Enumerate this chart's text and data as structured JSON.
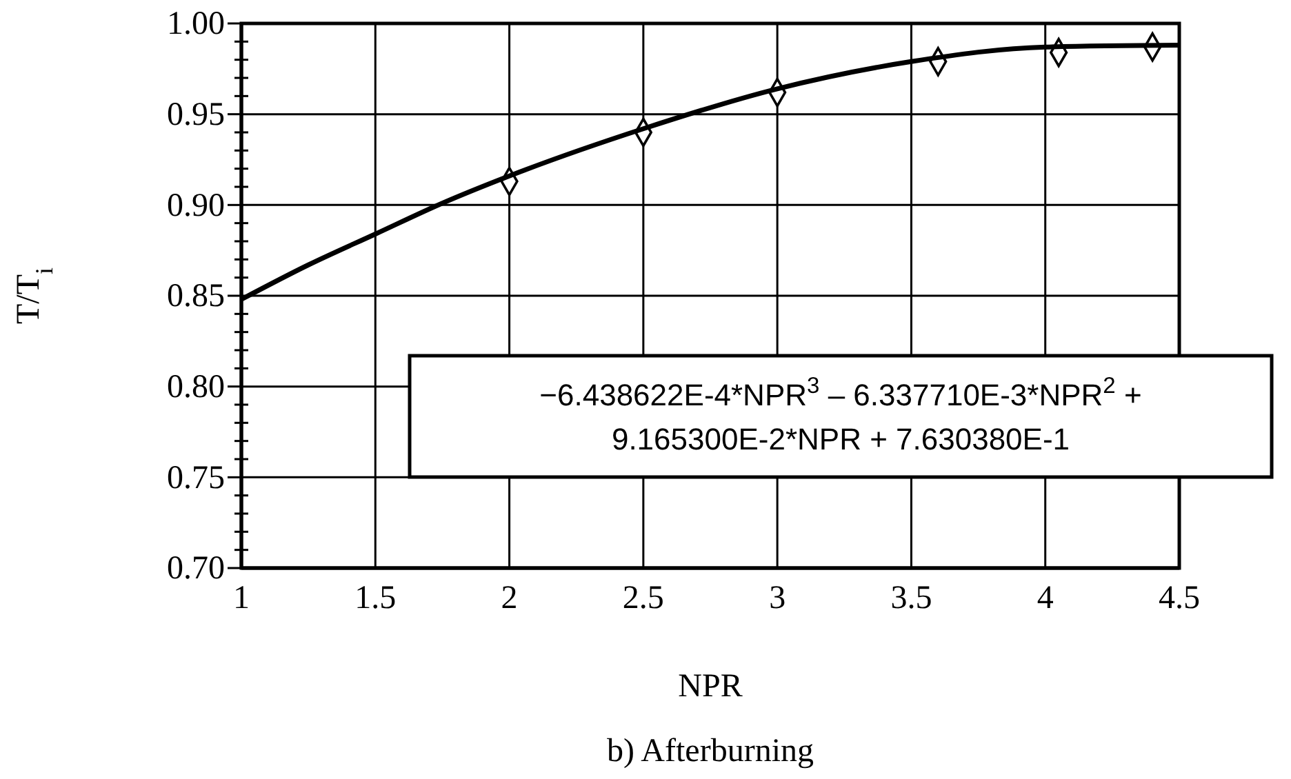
{
  "chart_data": {
    "type": "scatter",
    "xlabel": "NPR",
    "ylabel": "T/T$_{i}$",
    "xlim": [
      1,
      4.5
    ],
    "xticks": [
      1,
      1.5,
      2,
      2.5,
      3,
      3.5,
      4,
      4.5
    ],
    "ylim": [
      0.7,
      1.0
    ],
    "yticks": [
      {
        "value": 0.7,
        "label": "0.70"
      },
      {
        "value": 0.71,
        "label": null
      },
      {
        "value": 0.72,
        "label": null
      },
      {
        "value": 0.73,
        "label": null
      },
      {
        "value": 0.74,
        "label": null
      },
      {
        "value": 0.75,
        "label": "0.75"
      },
      {
        "value": 0.76,
        "label": null
      },
      {
        "value": 0.77,
        "label": null
      },
      {
        "value": 0.78,
        "label": null
      },
      {
        "value": 0.79,
        "label": null
      },
      {
        "value": 0.8,
        "label": "0.80"
      },
      {
        "value": 0.81,
        "label": null
      },
      {
        "value": 0.82,
        "label": null
      },
      {
        "value": 0.83,
        "label": null
      },
      {
        "value": 0.84,
        "label": null
      },
      {
        "value": 0.85,
        "label": "0.85"
      },
      {
        "value": 0.86,
        "label": null
      },
      {
        "value": 0.87,
        "label": null
      },
      {
        "value": 0.88,
        "label": null
      },
      {
        "value": 0.89,
        "label": null
      },
      {
        "value": 0.9,
        "label": "0.90"
      },
      {
        "value": 0.91,
        "label": null
      },
      {
        "value": 0.92,
        "label": null
      },
      {
        "value": 0.93,
        "label": null
      },
      {
        "value": 0.94,
        "label": null
      },
      {
        "value": 0.95,
        "label": "0.95"
      },
      {
        "value": 0.96,
        "label": null
      },
      {
        "value": 0.97,
        "label": null
      },
      {
        "value": 0.98,
        "label": null
      },
      {
        "value": 0.99,
        "label": null
      },
      {
        "value": 1.0,
        "label": "1.00"
      }
    ],
    "grid": true,
    "series": [
      {
        "marker": "diamond",
        "color": "#000000",
        "x": [
          2,
          2.5,
          3,
          3.6,
          4.05,
          4.4
        ],
        "values": [
          0.913,
          0.94,
          0.962,
          0.979,
          0.984,
          0.987
        ]
      },
      {
        "type": "line",
        "marker": "none",
        "line_style": "solid",
        "color": "#000000",
        "x": [
          1,
          1.25,
          1.5,
          1.75,
          2,
          2.5,
          3,
          3.5,
          4,
          4.5
        ],
        "values": [
          0.848,
          0.867,
          0.884,
          0.901,
          0.916,
          0.942,
          0.964,
          0.979,
          0.987,
          0.988
        ]
      }
    ],
    "annotations": [
      "−6.438622E-4*NPR$^{3}$ – 6.337710E-3*NPR$^{2}$ +\n9.165300E-2*NPR + 7.630380E-1",
      "b) Afterburning"
    ]
  }
}
